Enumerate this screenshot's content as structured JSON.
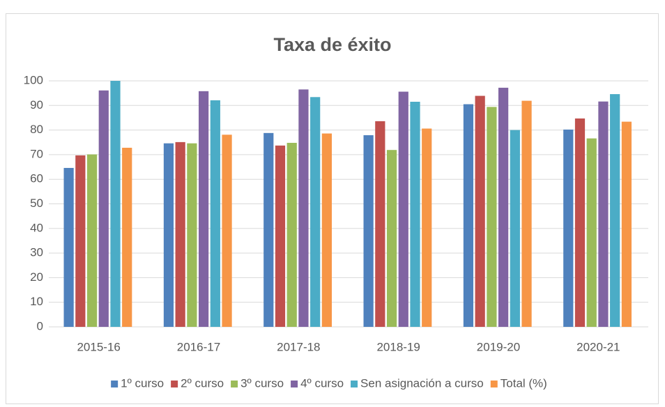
{
  "chart_data": {
    "type": "bar",
    "title": "Taxa de éxito",
    "categories": [
      "2015-16",
      "2016-17",
      "2017-18",
      "2018-19",
      "2019-20",
      "2020-21"
    ],
    "series": [
      {
        "name": "1º curso",
        "color": "#4f81bd",
        "values": [
          64.6,
          74.6,
          78.8,
          77.9,
          90.5,
          80.2
        ]
      },
      {
        "name": "2º curso",
        "color": "#c0504d",
        "values": [
          69.7,
          75.1,
          73.7,
          83.6,
          93.9,
          84.7
        ]
      },
      {
        "name": "3º curso",
        "color": "#9bbb59",
        "values": [
          70.1,
          74.6,
          74.8,
          71.9,
          89.4,
          76.6
        ]
      },
      {
        "name": "4º curso",
        "color": "#8064a2",
        "values": [
          96.1,
          95.8,
          96.5,
          95.6,
          97.2,
          91.6
        ]
      },
      {
        "name": "Sen asignación a curso",
        "color": "#4bacc6",
        "values": [
          100,
          92.1,
          93.4,
          91.5,
          80.0,
          94.6
        ]
      },
      {
        "name": "Total (%)",
        "color": "#f79646",
        "values": [
          72.8,
          78.1,
          78.6,
          80.6,
          91.9,
          83.4
        ]
      }
    ],
    "ylim": [
      0,
      100
    ],
    "yticks": [
      0,
      10,
      20,
      30,
      40,
      50,
      60,
      70,
      80,
      90,
      100
    ],
    "grid": true,
    "legend": "bottom"
  }
}
